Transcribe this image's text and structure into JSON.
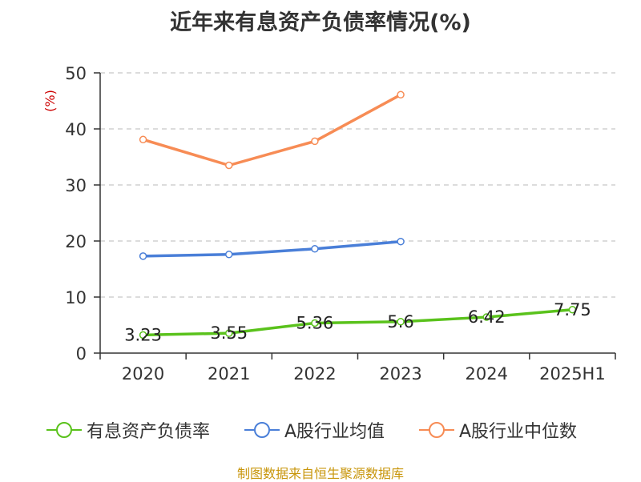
{
  "title": "近年来有息资产负债率情况(%)",
  "source": "制图数据来自恒生聚源数据库",
  "chart_data": {
    "type": "line",
    "title": "近年来有息资产负债率情况(%)",
    "ylabel": "(%)",
    "xlabel": "",
    "categories": [
      "2020",
      "2021",
      "2022",
      "2023",
      "2024",
      "2025H1"
    ],
    "ylim": [
      0,
      50
    ],
    "yticks": [
      0,
      10,
      20,
      30,
      40,
      50
    ],
    "grid": true,
    "legend_position": "bottom",
    "series": [
      {
        "name": "有息资产负债率",
        "color": "#5ac21c",
        "values": [
          3.23,
          3.55,
          5.36,
          5.6,
          6.42,
          7.75
        ],
        "labels": [
          "3.23",
          "3.55",
          "5.36",
          "5.6",
          "6.42",
          "7.75"
        ]
      },
      {
        "name": "A股行业均值",
        "color": "#4a7fd8",
        "values": [
          17.3,
          17.6,
          18.6,
          19.9,
          null,
          null
        ]
      },
      {
        "name": "A股行业中位数",
        "color": "#f78c55",
        "values": [
          38.1,
          33.5,
          37.8,
          46.1,
          null,
          null
        ]
      }
    ]
  }
}
